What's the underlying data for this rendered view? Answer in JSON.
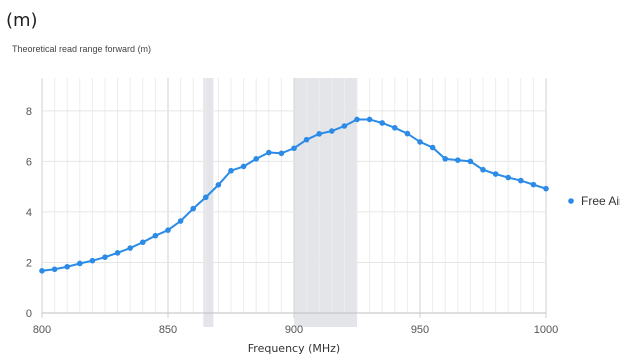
{
  "panel_label": "(m)",
  "chart_data": {
    "type": "line",
    "title": "Theoretical read range forward (m)",
    "xlabel": "Frequency (MHz)",
    "ylabel": "",
    "xlim": [
      800,
      1000
    ],
    "ylim": [
      0,
      9.3
    ],
    "xticks": [
      800,
      850,
      900,
      950,
      1000
    ],
    "yticks": [
      0,
      2,
      4,
      6,
      8
    ],
    "grid": true,
    "legend_position": "right",
    "highlight_bands": [
      {
        "x0": 864,
        "x1": 868
      },
      {
        "x0": 900,
        "x1": 925
      }
    ],
    "series": [
      {
        "name": "Free Air",
        "color": "#2b8be6",
        "x": [
          800,
          805,
          810,
          815,
          820,
          825,
          830,
          835,
          840,
          845,
          850,
          855,
          860,
          865,
          870,
          875,
          880,
          885,
          890,
          895,
          900,
          905,
          910,
          915,
          920,
          925,
          930,
          935,
          940,
          945,
          950,
          955,
          960,
          965,
          970,
          975,
          980,
          985,
          990,
          995,
          1000
        ],
        "y": [
          1.67,
          1.73,
          1.83,
          1.96,
          2.07,
          2.21,
          2.38,
          2.57,
          2.8,
          3.06,
          3.28,
          3.64,
          4.13,
          4.58,
          5.07,
          5.63,
          5.8,
          6.1,
          6.35,
          6.32,
          6.52,
          6.86,
          7.09,
          7.2,
          7.4,
          7.66,
          7.66,
          7.52,
          7.33,
          7.1,
          6.77,
          6.55,
          6.1,
          6.05,
          6.0,
          5.67,
          5.5,
          5.36,
          5.24,
          5.08,
          4.92
        ]
      }
    ]
  }
}
